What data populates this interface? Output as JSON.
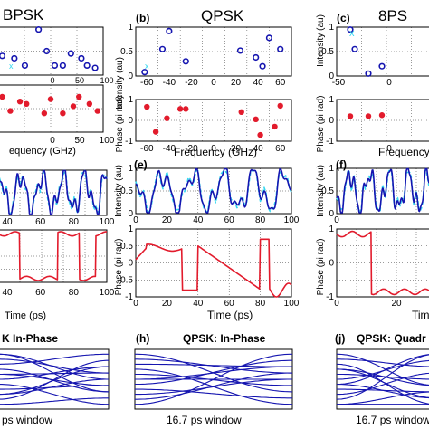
{
  "colors": {
    "blue": "#1515b0",
    "light": "#35d8f0",
    "red": "#e21b2c",
    "magenta": "#d040d8",
    "grid": "#000000"
  },
  "labels": {
    "bpsk": "BPSK",
    "qpsk": "QPSK",
    "psk8": "8PS",
    "b": "(b)",
    "c": "(c)",
    "e": "(e)",
    "f": "(f)",
    "h": "(h)",
    "j": "(j)",
    "int_au": "Intensity (au)",
    "phase_pi": "Phase (pi rad)",
    "freq_ghz": "Frequency (GHz)",
    "freq_a": "equency (GHz)",
    "freq_c": "Frequency",
    "time_ps": "Time (ps)",
    "eye_a_title": "K In-Phase",
    "eye_h_title": "QPSK: In-Phase",
    "eye_j_title": "QPSK: Quadr",
    "win_a": "ps window",
    "win_h": "16.7 ps window",
    "win_j": "16.7 ps window"
  },
  "chart_data": [
    {
      "panel": "a-top",
      "type": "scatter",
      "xticks": [
        "0",
        "50",
        "100"
      ],
      "x": [
        -10,
        5,
        18,
        35,
        45,
        55,
        65,
        75,
        88,
        95,
        105
      ],
      "y": [
        0.4,
        0.35,
        0.2,
        0.95,
        0.5,
        0.2,
        0.2,
        0.45,
        0.35,
        0.2,
        0.15
      ]
    },
    {
      "panel": "a-bottom",
      "type": "scatter",
      "xticks": [
        "0",
        "50",
        "100"
      ],
      "x": [
        -10,
        0,
        12,
        20,
        42,
        50,
        65,
        78,
        85,
        98,
        108
      ],
      "y": [
        0.5,
        -0.1,
        0.3,
        0.2,
        -0.2,
        0.4,
        -0.2,
        0.1,
        0.5,
        0.2,
        -0.1
      ]
    },
    {
      "panel": "b-top",
      "type": "scatter",
      "xlim": [
        -70,
        70
      ],
      "ylim": [
        0,
        1
      ],
      "xticks": [
        "-60",
        "-40",
        "-20",
        "0",
        "20",
        "40",
        "60"
      ],
      "yticks": [
        "0",
        "0.5",
        "1"
      ],
      "x": [
        -62,
        -46,
        -40,
        -25,
        24,
        38,
        44,
        50,
        60
      ],
      "y": [
        0.08,
        0.55,
        0.92,
        0.3,
        0.52,
        0.38,
        0.2,
        0.78,
        0.55
      ]
    },
    {
      "panel": "b-bottom",
      "type": "scatter",
      "xlim": [
        -70,
        70
      ],
      "ylim": [
        -1,
        1
      ],
      "xticks": [
        "-60",
        "-40",
        "-20",
        "0",
        "20",
        "40",
        "60"
      ],
      "yticks": [
        "-1",
        "0",
        "1"
      ],
      "x": [
        -60,
        -52,
        -42,
        -30,
        -25,
        25,
        38,
        42,
        55,
        60
      ],
      "y": [
        0.65,
        -0.55,
        0.1,
        0.55,
        0.55,
        0.4,
        0.05,
        -0.7,
        -0.3,
        0.7
      ]
    },
    {
      "panel": "c-top",
      "type": "scatter",
      "xticks": [
        "-50",
        "0"
      ],
      "yticks": [
        "0",
        "0.5",
        "1"
      ],
      "x": [
        -40,
        -35,
        -20,
        -5
      ],
      "y": [
        0.95,
        0.55,
        0.05,
        0.2
      ]
    },
    {
      "panel": "c-bottom",
      "type": "scatter",
      "yticks": [
        "-1",
        "0",
        "1"
      ],
      "x": [
        -40,
        -20,
        -5
      ],
      "y": [
        0.2,
        0.2,
        0.25
      ]
    },
    {
      "panel": "e-top",
      "type": "line",
      "xlim": [
        0,
        100
      ],
      "ylim": [
        0,
        1
      ],
      "xticks": [
        "0",
        "20",
        "40",
        "60",
        "80",
        "100"
      ],
      "yticks": [
        "0",
        "0.5",
        "1"
      ]
    },
    {
      "panel": "e-bottom",
      "type": "line",
      "xlim": [
        0,
        100
      ],
      "ylim": [
        -1,
        1
      ],
      "xticks": [
        "0",
        "20",
        "40",
        "60",
        "80",
        "100"
      ],
      "yticks": [
        "-1",
        "-0.5",
        "0",
        "0.5",
        "1"
      ]
    },
    {
      "panel": "a2-top",
      "type": "line",
      "xticks": [
        "40",
        "60",
        "80",
        "100"
      ]
    },
    {
      "panel": "a2-bottom",
      "type": "line",
      "xticks": [
        "40",
        "60",
        "80",
        "100"
      ]
    },
    {
      "panel": "f-top",
      "type": "line",
      "xticks": [
        "0"
      ],
      "yticks": [
        "0",
        "0.5",
        "1"
      ]
    },
    {
      "panel": "f-bottom",
      "type": "line",
      "xticks": [
        "0",
        "20"
      ],
      "yticks": [
        "-1",
        "0",
        "1"
      ]
    }
  ]
}
